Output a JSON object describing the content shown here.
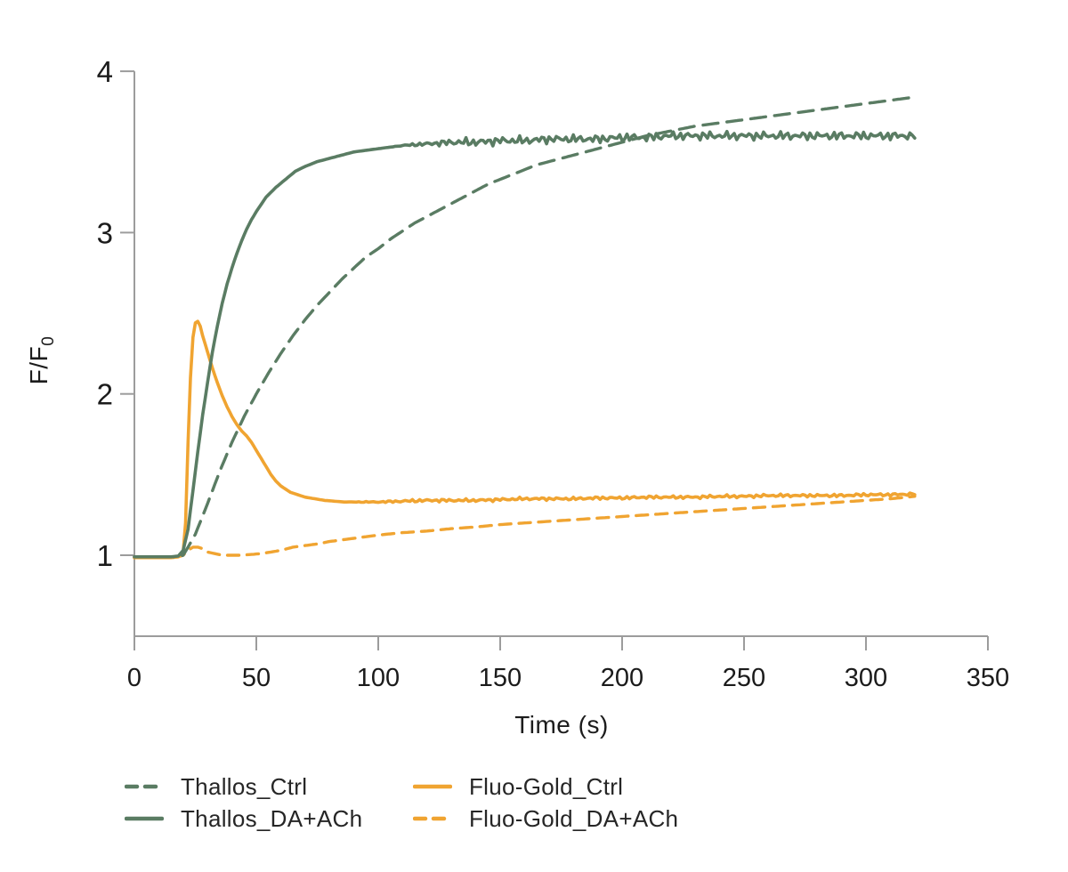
{
  "chart_data": {
    "type": "line",
    "xlabel": "Time (s)",
    "ylabel_main": "F/F",
    "ylabel_sub": "0",
    "xlim": [
      0,
      350
    ],
    "ylim": [
      0.5,
      4.0
    ],
    "x_ticks": [
      0,
      50,
      100,
      150,
      200,
      250,
      300,
      350
    ],
    "y_ticks": [
      1,
      2,
      3,
      4
    ],
    "grid": false,
    "legend_position": "bottom-left",
    "axis_color": "#9c9c9c",
    "text_color": "#1b1b1b",
    "draw_order": [
      3,
      2,
      1,
      0
    ],
    "series": [
      {
        "name": "Thallos_Ctrl",
        "color": "#5a7c63",
        "style": "dashed",
        "stroke_width": 3.4,
        "dash": [
          17,
          10
        ],
        "noise_amp": 0,
        "noise_from": 0,
        "points": [
          [
            0,
            0.99
          ],
          [
            5,
            0.99
          ],
          [
            10,
            0.99
          ],
          [
            15,
            0.99
          ],
          [
            18,
            0.99
          ],
          [
            20,
            1.0
          ],
          [
            22,
            1.05
          ],
          [
            25,
            1.13
          ],
          [
            30,
            1.32
          ],
          [
            35,
            1.52
          ],
          [
            40,
            1.7
          ],
          [
            45,
            1.86
          ],
          [
            50,
            2.0
          ],
          [
            55,
            2.13
          ],
          [
            60,
            2.25
          ],
          [
            65,
            2.36
          ],
          [
            70,
            2.46
          ],
          [
            75,
            2.55
          ],
          [
            80,
            2.63
          ],
          [
            85,
            2.71
          ],
          [
            90,
            2.78
          ],
          [
            95,
            2.85
          ],
          [
            100,
            2.9
          ],
          [
            105,
            2.96
          ],
          [
            110,
            3.01
          ],
          [
            115,
            3.06
          ],
          [
            120,
            3.1
          ],
          [
            125,
            3.14
          ],
          [
            130,
            3.18
          ],
          [
            135,
            3.22
          ],
          [
            140,
            3.26
          ],
          [
            145,
            3.3
          ],
          [
            150,
            3.33
          ],
          [
            155,
            3.36
          ],
          [
            160,
            3.39
          ],
          [
            165,
            3.42
          ],
          [
            170,
            3.44
          ],
          [
            175,
            3.46
          ],
          [
            180,
            3.48
          ],
          [
            185,
            3.5
          ],
          [
            190,
            3.52
          ],
          [
            195,
            3.54
          ],
          [
            200,
            3.56
          ],
          [
            210,
            3.6
          ],
          [
            220,
            3.63
          ],
          [
            230,
            3.66
          ],
          [
            240,
            3.68
          ],
          [
            250,
            3.7
          ],
          [
            260,
            3.72
          ],
          [
            270,
            3.74
          ],
          [
            280,
            3.76
          ],
          [
            290,
            3.78
          ],
          [
            300,
            3.8
          ],
          [
            310,
            3.82
          ],
          [
            320,
            3.84
          ]
        ]
      },
      {
        "name": "Thallos_DA+ACh",
        "color": "#5a7c63",
        "style": "solid",
        "stroke_width": 3.6,
        "dash": [],
        "noise_amp": 0.022,
        "noise_from": 105,
        "points": [
          [
            0,
            0.99
          ],
          [
            5,
            0.99
          ],
          [
            10,
            0.99
          ],
          [
            15,
            0.99
          ],
          [
            18,
            0.995
          ],
          [
            20,
            1.03
          ],
          [
            22,
            1.16
          ],
          [
            24,
            1.4
          ],
          [
            26,
            1.64
          ],
          [
            28,
            1.87
          ],
          [
            30,
            2.07
          ],
          [
            32,
            2.26
          ],
          [
            34,
            2.42
          ],
          [
            36,
            2.56
          ],
          [
            38,
            2.68
          ],
          [
            40,
            2.78
          ],
          [
            42,
            2.87
          ],
          [
            44,
            2.95
          ],
          [
            46,
            3.02
          ],
          [
            48,
            3.08
          ],
          [
            50,
            3.13
          ],
          [
            54,
            3.22
          ],
          [
            58,
            3.28
          ],
          [
            62,
            3.33
          ],
          [
            66,
            3.38
          ],
          [
            70,
            3.41
          ],
          [
            75,
            3.44
          ],
          [
            80,
            3.46
          ],
          [
            85,
            3.48
          ],
          [
            90,
            3.5
          ],
          [
            95,
            3.51
          ],
          [
            100,
            3.52
          ],
          [
            110,
            3.54
          ],
          [
            120,
            3.55
          ],
          [
            130,
            3.56
          ],
          [
            140,
            3.56
          ],
          [
            150,
            3.57
          ],
          [
            160,
            3.57
          ],
          [
            170,
            3.58
          ],
          [
            180,
            3.58
          ],
          [
            190,
            3.58
          ],
          [
            200,
            3.59
          ],
          [
            210,
            3.59
          ],
          [
            220,
            3.6
          ],
          [
            230,
            3.6
          ],
          [
            240,
            3.6
          ],
          [
            250,
            3.6
          ],
          [
            260,
            3.6
          ],
          [
            270,
            3.6
          ],
          [
            280,
            3.6
          ],
          [
            290,
            3.6
          ],
          [
            300,
            3.6
          ],
          [
            310,
            3.6
          ],
          [
            320,
            3.6
          ]
        ]
      },
      {
        "name": "Fluo-Gold_Ctrl",
        "color": "#f0a431",
        "style": "solid",
        "stroke_width": 3.6,
        "dash": [],
        "noise_amp": 0.008,
        "noise_from": 85,
        "points": [
          [
            0,
            0.985
          ],
          [
            5,
            0.985
          ],
          [
            10,
            0.985
          ],
          [
            15,
            0.985
          ],
          [
            18,
            0.99
          ],
          [
            20,
            1.02
          ],
          [
            21,
            1.2
          ],
          [
            22,
            1.7
          ],
          [
            23,
            2.1
          ],
          [
            24,
            2.35
          ],
          [
            25,
            2.44
          ],
          [
            26,
            2.45
          ],
          [
            27,
            2.42
          ],
          [
            28,
            2.36
          ],
          [
            30,
            2.26
          ],
          [
            32,
            2.16
          ],
          [
            34,
            2.07
          ],
          [
            36,
            1.99
          ],
          [
            38,
            1.92
          ],
          [
            40,
            1.86
          ],
          [
            42,
            1.81
          ],
          [
            44,
            1.77
          ],
          [
            46,
            1.74
          ],
          [
            48,
            1.7
          ],
          [
            50,
            1.65
          ],
          [
            52,
            1.6
          ],
          [
            54,
            1.55
          ],
          [
            56,
            1.5
          ],
          [
            58,
            1.46
          ],
          [
            60,
            1.43
          ],
          [
            62,
            1.41
          ],
          [
            64,
            1.39
          ],
          [
            66,
            1.38
          ],
          [
            68,
            1.37
          ],
          [
            70,
            1.36
          ],
          [
            74,
            1.35
          ],
          [
            78,
            1.34
          ],
          [
            82,
            1.335
          ],
          [
            86,
            1.33
          ],
          [
            90,
            1.33
          ],
          [
            95,
            1.33
          ],
          [
            100,
            1.33
          ],
          [
            110,
            1.335
          ],
          [
            120,
            1.34
          ],
          [
            130,
            1.34
          ],
          [
            140,
            1.34
          ],
          [
            150,
            1.345
          ],
          [
            160,
            1.35
          ],
          [
            170,
            1.35
          ],
          [
            180,
            1.35
          ],
          [
            190,
            1.355
          ],
          [
            200,
            1.355
          ],
          [
            210,
            1.36
          ],
          [
            220,
            1.36
          ],
          [
            230,
            1.36
          ],
          [
            240,
            1.365
          ],
          [
            250,
            1.365
          ],
          [
            260,
            1.37
          ],
          [
            270,
            1.37
          ],
          [
            280,
            1.37
          ],
          [
            290,
            1.37
          ],
          [
            300,
            1.375
          ],
          [
            310,
            1.375
          ],
          [
            320,
            1.38
          ]
        ]
      },
      {
        "name": "Fluo-Gold_DA+ACh",
        "color": "#f0a431",
        "style": "dashed",
        "stroke_width": 3.4,
        "dash": [
          13,
          9
        ],
        "noise_amp": 0,
        "noise_from": 0,
        "points": [
          [
            0,
            0.985
          ],
          [
            5,
            0.985
          ],
          [
            10,
            0.985
          ],
          [
            15,
            0.985
          ],
          [
            18,
            0.99
          ],
          [
            20,
            1.0
          ],
          [
            22,
            1.03
          ],
          [
            24,
            1.05
          ],
          [
            26,
            1.05
          ],
          [
            28,
            1.04
          ],
          [
            30,
            1.02
          ],
          [
            33,
            1.01
          ],
          [
            36,
            1.0
          ],
          [
            40,
            1.0
          ],
          [
            44,
            1.0
          ],
          [
            48,
            1.005
          ],
          [
            52,
            1.01
          ],
          [
            56,
            1.02
          ],
          [
            60,
            1.03
          ],
          [
            65,
            1.05
          ],
          [
            70,
            1.06
          ],
          [
            75,
            1.07
          ],
          [
            80,
            1.085
          ],
          [
            85,
            1.095
          ],
          [
            90,
            1.105
          ],
          [
            95,
            1.115
          ],
          [
            100,
            1.125
          ],
          [
            110,
            1.14
          ],
          [
            120,
            1.15
          ],
          [
            130,
            1.165
          ],
          [
            140,
            1.175
          ],
          [
            150,
            1.19
          ],
          [
            160,
            1.2
          ],
          [
            170,
            1.21
          ],
          [
            180,
            1.22
          ],
          [
            190,
            1.23
          ],
          [
            200,
            1.24
          ],
          [
            210,
            1.25
          ],
          [
            220,
            1.26
          ],
          [
            230,
            1.27
          ],
          [
            240,
            1.28
          ],
          [
            250,
            1.29
          ],
          [
            260,
            1.3
          ],
          [
            270,
            1.31
          ],
          [
            280,
            1.32
          ],
          [
            290,
            1.33
          ],
          [
            300,
            1.34
          ],
          [
            310,
            1.35
          ],
          [
            320,
            1.365
          ]
        ]
      }
    ]
  }
}
